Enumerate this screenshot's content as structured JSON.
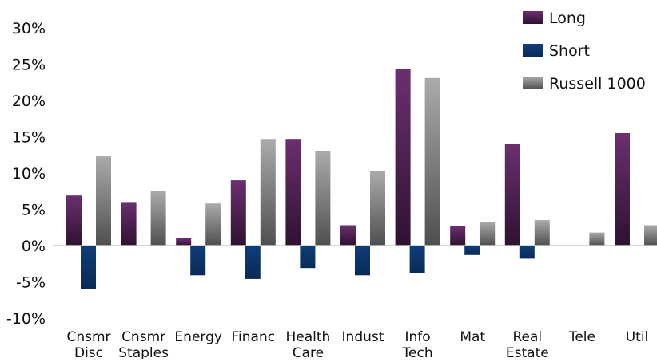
{
  "chart_data": {
    "type": "bar",
    "title": "",
    "xlabel": "",
    "ylabel": "",
    "categories": [
      [
        "Cnsmr",
        "Disc"
      ],
      [
        "Cnsmr",
        "Staples"
      ],
      [
        "Energy"
      ],
      [
        "Financ"
      ],
      [
        "Health",
        "Care"
      ],
      [
        "Indust"
      ],
      [
        "Info",
        "Tech"
      ],
      [
        "Mat"
      ],
      [
        "Real",
        "Estate"
      ],
      [
        "Tele"
      ],
      [
        "Util"
      ]
    ],
    "series": [
      {
        "name": "Long",
        "values": [
          6.9,
          6.0,
          1.0,
          9.0,
          14.7,
          2.8,
          24.3,
          2.7,
          14.0,
          0.0,
          15.5
        ]
      },
      {
        "name": "Short",
        "values": [
          -6.0,
          0.0,
          -4.1,
          -4.6,
          -3.1,
          -4.1,
          -3.8,
          -1.3,
          -1.8,
          0.0,
          0.0
        ]
      },
      {
        "name": "Russell 1000",
        "values": [
          12.3,
          7.5,
          5.8,
          14.7,
          13.0,
          10.3,
          23.1,
          3.3,
          3.5,
          1.8,
          2.8
        ]
      }
    ],
    "colors": {
      "Long": [
        "#6b2f70",
        "#2e1230"
      ],
      "Short": [
        "#0e3e7a",
        "#0a2a55"
      ],
      "Russell 1000": [
        "#a9abad",
        "#4d4f51"
      ]
    },
    "ylim": [
      -10,
      30
    ],
    "yticks": [
      30,
      25,
      20,
      15,
      10,
      5,
      0,
      -5,
      -10
    ],
    "ytick_labels": [
      "30%",
      "25%",
      "20%",
      "15%",
      "10%",
      "5%",
      "0%",
      "-5%",
      "-10%"
    ],
    "legend_position": "top-right",
    "grid": false
  }
}
